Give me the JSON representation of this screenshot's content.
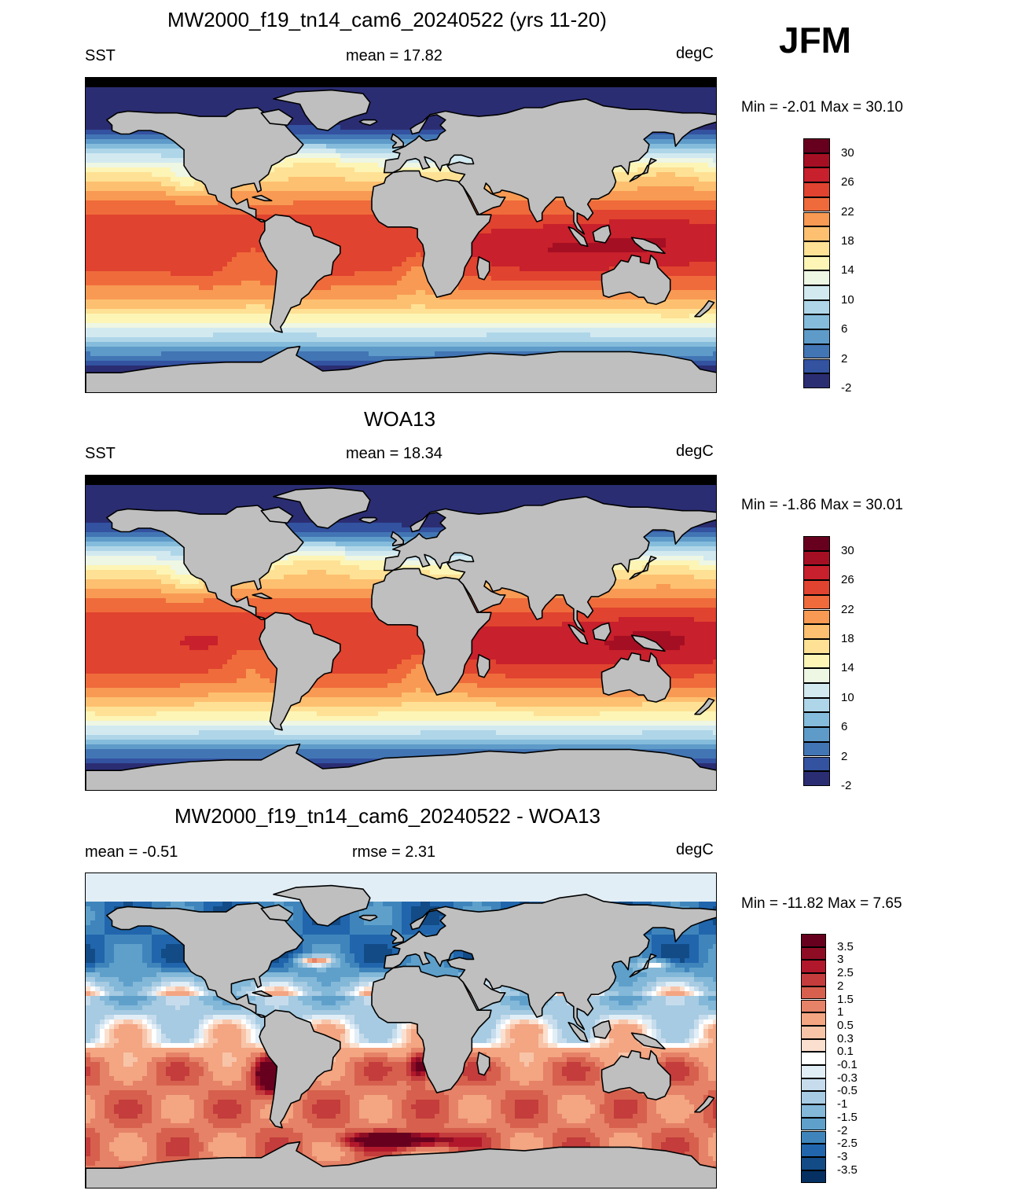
{
  "season": "JFM",
  "panels": [
    {
      "id": "model",
      "title": "MW2000_f19_tn14_cam6_20240522 (yrs 11-20)",
      "left_label": "SST",
      "center_label": "mean =  17.82",
      "right_label": "degC",
      "minmax": "Min =  -2.01 Max =  30.10",
      "field": "sst"
    },
    {
      "id": "obs",
      "title": "WOA13",
      "left_label": "SST",
      "center_label": "mean =  18.34",
      "right_label": "degC",
      "minmax": "Min =  -1.86 Max =  30.01",
      "field": "sst_obs"
    },
    {
      "id": "diff",
      "title": "MW2000_f19_tn14_cam6_20240522 - WOA13",
      "left_label": "mean =  -0.51",
      "center_label": "rmse =   2.31",
      "right_label": "degC",
      "minmax": "Min = -11.82 Max =   7.65",
      "field": "diff"
    }
  ],
  "sst_colorbar": {
    "labels": [
      "30",
      "26",
      "22",
      "18",
      "14",
      "10",
      "6",
      "2",
      "-2"
    ],
    "colors": [
      "#67001f",
      "#a50f23",
      "#c8202c",
      "#e0432f",
      "#ef6b3b",
      "#f89a53",
      "#fdc070",
      "#fee194",
      "#fdf5b6",
      "#eef6e4",
      "#d2e9f0",
      "#afd6e8",
      "#85bcdc",
      "#5e9bc9",
      "#4275b4",
      "#3352a0",
      "#2b2d73"
    ]
  },
  "diff_colorbar": {
    "labels": [
      "3.5",
      "3",
      "2.5",
      "2",
      "1.5",
      "1",
      "0.5",
      "0.3",
      "0.1",
      "-0.1",
      "-0.3",
      "-0.5",
      "-1",
      "-1.5",
      "-2",
      "-2.5",
      "-3",
      "-3.5"
    ],
    "colors": [
      "#67001f",
      "#8e0d25",
      "#b2182b",
      "#c43c3c",
      "#d6604d",
      "#e58267",
      "#f4a582",
      "#f8c4a8",
      "#fbe0cf",
      "#ffffff",
      "#e2eef6",
      "#c6dcec",
      "#a6cbe2",
      "#83b8d8",
      "#5fa0cb",
      "#3f85bc",
      "#2166ac",
      "#124b86",
      "#053061"
    ]
  }
}
